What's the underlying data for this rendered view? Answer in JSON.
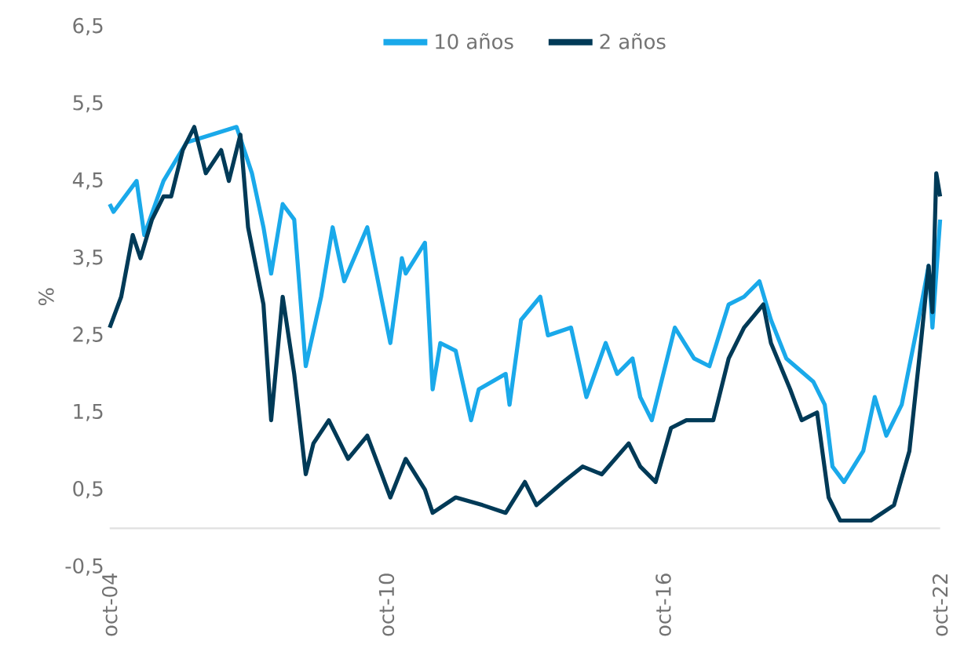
{
  "chart_data": {
    "type": "line",
    "ylabel": "%",
    "legend": "top",
    "marker": "none",
    "line_style": "solid",
    "grid": false,
    "xlim": [
      "2004-10",
      "2022-10"
    ],
    "xticks": [
      {
        "value": "2004-10",
        "label": "oct-04"
      },
      {
        "value": "2010-10",
        "label": "oct-10"
      },
      {
        "value": "2016-10",
        "label": "oct-16"
      },
      {
        "value": "2022-10",
        "label": "oct-22"
      }
    ],
    "ylim": [
      -0.5,
      6.5
    ],
    "yticks": [
      {
        "value": -0.5,
        "label": "-0,5"
      },
      {
        "value": 0.5,
        "label": "0,5"
      },
      {
        "value": 1.5,
        "label": "1,5"
      },
      {
        "value": 2.5,
        "label": "2,5"
      },
      {
        "value": 3.5,
        "label": "3,5"
      },
      {
        "value": 4.5,
        "label": "4,5"
      },
      {
        "value": 5.5,
        "label": "5,5"
      },
      {
        "value": 6.5,
        "label": "6,5"
      }
    ],
    "series": [
      {
        "name": "10 años",
        "color": "#1aa9ea",
        "x": [
          "2004-10",
          "2004-11",
          "2005-05",
          "2005-07",
          "2005-12",
          "2006-06",
          "2007-07",
          "2007-11",
          "2008-02",
          "2008-04",
          "2008-07",
          "2008-10",
          "2009-01",
          "2009-05",
          "2009-08",
          "2009-11",
          "2010-05",
          "2010-11",
          "2011-02",
          "2011-03",
          "2011-08",
          "2011-10",
          "2011-12",
          "2012-04",
          "2012-08",
          "2012-10",
          "2013-05",
          "2013-06",
          "2013-09",
          "2014-02",
          "2014-04",
          "2014-10",
          "2015-02",
          "2015-07",
          "2015-10",
          "2016-02",
          "2016-04",
          "2016-07",
          "2017-01",
          "2017-06",
          "2017-10",
          "2018-03",
          "2018-07",
          "2018-11",
          "2019-02",
          "2019-06",
          "2020-01",
          "2020-04",
          "2020-06",
          "2020-09",
          "2021-02",
          "2021-05",
          "2021-08",
          "2021-12",
          "2022-04",
          "2022-07",
          "2022-08",
          "2022-10"
        ],
        "values": [
          4.2,
          4.1,
          4.5,
          3.8,
          4.5,
          5.0,
          5.2,
          4.6,
          3.9,
          3.3,
          4.2,
          4.0,
          2.1,
          3.0,
          3.9,
          3.2,
          3.9,
          2.4,
          3.5,
          3.3,
          3.7,
          1.8,
          2.4,
          2.3,
          1.4,
          1.8,
          2.0,
          1.6,
          2.7,
          3.0,
          2.5,
          2.6,
          1.7,
          2.4,
          2.0,
          2.2,
          1.7,
          1.4,
          2.6,
          2.2,
          2.1,
          2.9,
          3.0,
          3.2,
          2.7,
          2.2,
          1.9,
          1.6,
          0.8,
          0.6,
          1.0,
          1.7,
          1.2,
          1.6,
          2.6,
          3.4,
          2.6,
          4.0
        ]
      },
      {
        "name": "2 años",
        "color": "#003a57",
        "x": [
          "2004-10",
          "2005-01",
          "2005-04",
          "2005-06",
          "2005-09",
          "2005-12",
          "2006-02",
          "2006-05",
          "2006-08",
          "2006-11",
          "2007-03",
          "2007-05",
          "2007-08",
          "2007-10",
          "2008-02",
          "2008-04",
          "2008-07",
          "2008-10",
          "2009-01",
          "2009-03",
          "2009-07",
          "2009-12",
          "2010-05",
          "2010-08",
          "2010-11",
          "2011-03",
          "2011-08",
          "2011-10",
          "2012-04",
          "2012-11",
          "2013-05",
          "2013-10",
          "2014-01",
          "2014-08",
          "2015-01",
          "2015-06",
          "2016-01",
          "2016-04",
          "2016-08",
          "2016-12",
          "2017-04",
          "2017-11",
          "2018-03",
          "2018-07",
          "2018-12",
          "2019-02",
          "2019-07",
          "2019-10",
          "2020-02",
          "2020-05",
          "2020-08",
          "2021-04",
          "2021-10",
          "2022-02",
          "2022-05",
          "2022-07",
          "2022-08",
          "2022-09",
          "2022-10"
        ],
        "values": [
          2.6,
          3.0,
          3.8,
          3.5,
          4.0,
          4.3,
          4.3,
          4.9,
          5.2,
          4.6,
          4.9,
          4.5,
          5.1,
          3.9,
          2.9,
          1.4,
          3.0,
          2.0,
          0.7,
          1.1,
          1.4,
          0.9,
          1.2,
          0.8,
          0.4,
          0.9,
          0.5,
          0.2,
          0.4,
          0.3,
          0.2,
          0.6,
          0.3,
          0.6,
          0.8,
          0.7,
          1.1,
          0.8,
          0.6,
          1.3,
          1.4,
          1.4,
          2.2,
          2.6,
          2.9,
          2.4,
          1.8,
          1.4,
          1.5,
          0.4,
          0.1,
          0.1,
          0.3,
          1.0,
          2.4,
          3.4,
          2.8,
          4.6,
          4.3
        ]
      }
    ]
  }
}
